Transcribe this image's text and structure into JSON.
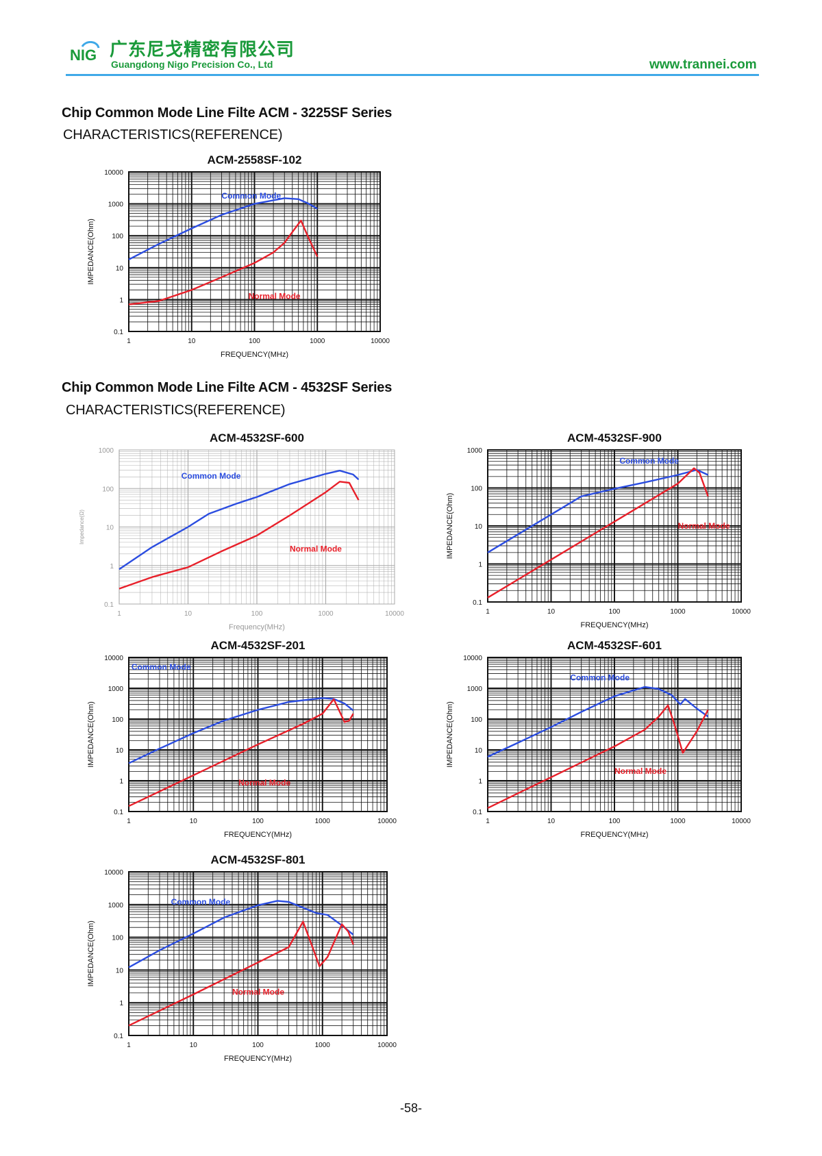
{
  "header": {
    "company_cn": "广东尼戈精密有限公司",
    "company_en": "Guangdong Nigo Precision Co., Ltd",
    "logo_text": "NIG",
    "website": "www.trannei.com",
    "brand_color": "#1a9a3a",
    "rule_color": "#3fa9e8"
  },
  "sections": [
    {
      "title": "Chip Common Mode Line Filte ACM - 3225SF Series",
      "subtitle": "CHARACTERISTICS(REFERENCE)"
    },
    {
      "title": "Chip Common Mode Line Filte ACM - 4532SF Series",
      "subtitle": "CHARACTERISTICS(REFERENCE)"
    }
  ],
  "page_number": "-58-",
  "chart_data": [
    {
      "type": "line",
      "title": "ACM-2558SF-102",
      "xlabel": "FREQUENCY(MHz)",
      "ylabel": "IMPEDANCE(Ohm)",
      "x_scale": "log",
      "y_scale": "log",
      "xlim": [
        1,
        10000
      ],
      "ylim": [
        0.1,
        10000
      ],
      "x_ticks": [
        "1",
        "10",
        "100",
        "1000",
        "10000"
      ],
      "y_ticks": [
        "0.1",
        "1",
        "10",
        "100",
        "1000",
        "10000"
      ],
      "grid": true,
      "series": [
        {
          "name": "Common Mode",
          "color": "#2b4de0",
          "label_at": [
            30,
            1450
          ],
          "points": [
            [
              1,
              18
            ],
            [
              3,
              55
            ],
            [
              10,
              170
            ],
            [
              30,
              450
            ],
            [
              100,
              1000
            ],
            [
              300,
              1500
            ],
            [
              500,
              1400
            ],
            [
              700,
              1050
            ],
            [
              1000,
              700
            ]
          ]
        },
        {
          "name": "Normal Mode",
          "color": "#e8202a",
          "label_at": [
            80,
            1.05
          ],
          "points": [
            [
              1,
              0.7
            ],
            [
              3,
              0.9
            ],
            [
              10,
              2
            ],
            [
              30,
              5
            ],
            [
              100,
              14
            ],
            [
              200,
              30
            ],
            [
              300,
              60
            ],
            [
              400,
              130
            ],
            [
              550,
              300
            ],
            [
              700,
              100
            ],
            [
              1000,
              22
            ]
          ]
        }
      ]
    },
    {
      "type": "line",
      "title": "ACM-4532SF-600",
      "xlabel": "Frequency(MHz)",
      "ylabel": "Impedance(Ω)",
      "x_scale": "log",
      "y_scale": "log",
      "xlim": [
        1,
        10000
      ],
      "ylim": [
        0.1,
        1000
      ],
      "x_ticks": [
        "1",
        "10",
        "100",
        "1000",
        "10000"
      ],
      "y_ticks": [
        "0.1",
        "1",
        "10",
        "100",
        "1000"
      ],
      "grid": true,
      "series": [
        {
          "name": "Common Mode",
          "color": "#2b4de0",
          "label_at": [
            8,
            180
          ],
          "points": [
            [
              1,
              0.8
            ],
            [
              3,
              3
            ],
            [
              10,
              10
            ],
            [
              20,
              22
            ],
            [
              50,
              40
            ],
            [
              100,
              60
            ],
            [
              300,
              130
            ],
            [
              1000,
              240
            ],
            [
              1600,
              290
            ],
            [
              2500,
              230
            ],
            [
              3000,
              170
            ]
          ]
        },
        {
          "name": "Normal Mode",
          "color": "#e8202a",
          "label_at": [
            300,
            2.3
          ],
          "points": [
            [
              1,
              0.25
            ],
            [
              3,
              0.5
            ],
            [
              10,
              0.9
            ],
            [
              30,
              2.3
            ],
            [
              100,
              6
            ],
            [
              300,
              20
            ],
            [
              1000,
              80
            ],
            [
              1600,
              150
            ],
            [
              2200,
              140
            ],
            [
              2600,
              80
            ],
            [
              3000,
              50
            ]
          ]
        }
      ]
    },
    {
      "type": "line",
      "title": "ACM-4532SF-900",
      "xlabel": "FREQUENCY(MHz)",
      "ylabel": "IMPEDANCE(Ohm)",
      "x_scale": "log",
      "y_scale": "log",
      "xlim": [
        1,
        10000
      ],
      "ylim": [
        0.1,
        1000
      ],
      "x_ticks": [
        "1",
        "10",
        "100",
        "1000",
        "10000"
      ],
      "y_ticks": [
        "0.1",
        "1",
        "10",
        "100",
        "1000"
      ],
      "grid": true,
      "series": [
        {
          "name": "Common Mode",
          "color": "#2b4de0",
          "label_at": [
            120,
            440
          ],
          "points": [
            [
              1,
              2
            ],
            [
              3,
              6
            ],
            [
              10,
              20
            ],
            [
              30,
              60
            ],
            [
              100,
              95
            ],
            [
              300,
              140
            ],
            [
              1000,
              220
            ],
            [
              2000,
              300
            ],
            [
              3000,
              220
            ]
          ]
        },
        {
          "name": "Normal Mode",
          "color": "#e8202a",
          "label_at": [
            1000,
            8.5
          ],
          "points": [
            [
              1,
              0.13
            ],
            [
              10,
              1.3
            ],
            [
              100,
              13
            ],
            [
              1000,
              130
            ],
            [
              1800,
              330
            ],
            [
              2200,
              250
            ],
            [
              3000,
              60
            ]
          ]
        }
      ]
    },
    {
      "type": "line",
      "title": "ACM-4532SF-201",
      "xlabel": "FREQUENCY(MHz)",
      "ylabel": "IMPEDANCE(Ohm)",
      "x_scale": "log",
      "y_scale": "log",
      "xlim": [
        1,
        10000
      ],
      "ylim": [
        0.1,
        10000
      ],
      "x_ticks": [
        "1",
        "10",
        "100",
        "1000",
        "10000"
      ],
      "y_ticks": [
        "0.1",
        "1",
        "10",
        "100",
        "1000",
        "10000"
      ],
      "grid": true,
      "series": [
        {
          "name": "Common Mode",
          "color": "#2b4de0",
          "label_at": [
            1.1,
            4000
          ],
          "points": [
            [
              1,
              3.7
            ],
            [
              3,
              11
            ],
            [
              10,
              35
            ],
            [
              30,
              90
            ],
            [
              100,
              200
            ],
            [
              300,
              360
            ],
            [
              1000,
              480
            ],
            [
              1500,
              450
            ],
            [
              2200,
              320
            ],
            [
              3000,
              190
            ]
          ]
        },
        {
          "name": "Normal Mode",
          "color": "#e8202a",
          "label_at": [
            50,
            0.7
          ],
          "points": [
            [
              1,
              0.15
            ],
            [
              10,
              1.5
            ],
            [
              100,
              15
            ],
            [
              500,
              70
            ],
            [
              1000,
              150
            ],
            [
              1500,
              440
            ],
            [
              2200,
              80
            ],
            [
              2600,
              90
            ],
            [
              3000,
              150
            ]
          ]
        }
      ]
    },
    {
      "type": "line",
      "title": "ACM-4532SF-601",
      "xlabel": "FREQUENCY(MHz)",
      "ylabel": "IMPEDANCE(Ohm)",
      "x_scale": "log",
      "y_scale": "log",
      "xlim": [
        1,
        10000
      ],
      "ylim": [
        0.1,
        10000
      ],
      "x_ticks": [
        "1",
        "10",
        "100",
        "1000",
        "10000"
      ],
      "y_ticks": [
        "0.1",
        "1",
        "10",
        "100",
        "1000",
        "10000"
      ],
      "grid": true,
      "series": [
        {
          "name": "Common Mode",
          "color": "#2b4de0",
          "label_at": [
            20,
            1800
          ],
          "points": [
            [
              1,
              6
            ],
            [
              3,
              17
            ],
            [
              10,
              55
            ],
            [
              30,
              170
            ],
            [
              100,
              550
            ],
            [
              300,
              1100
            ],
            [
              500,
              950
            ],
            [
              800,
              600
            ],
            [
              1100,
              300
            ],
            [
              1300,
              450
            ],
            [
              2000,
              220
            ],
            [
              3000,
              120
            ]
          ]
        },
        {
          "name": "Normal Mode",
          "color": "#e8202a",
          "label_at": [
            100,
            1.65
          ],
          "points": [
            [
              1,
              0.13
            ],
            [
              10,
              1.3
            ],
            [
              100,
              13
            ],
            [
              300,
              45
            ],
            [
              500,
              120
            ],
            [
              700,
              280
            ],
            [
              900,
              60
            ],
            [
              1200,
              8
            ],
            [
              2000,
              40
            ],
            [
              3000,
              200
            ]
          ]
        }
      ]
    },
    {
      "type": "line",
      "title": "ACM-4532SF-801",
      "xlabel": "FREQUENCY(MHz)",
      "ylabel": "IMPEDANCE(Ohm)",
      "x_scale": "log",
      "y_scale": "log",
      "xlim": [
        1,
        10000
      ],
      "ylim": [
        0.1,
        10000
      ],
      "x_ticks": [
        "1",
        "10",
        "100",
        "1000",
        "10000"
      ],
      "y_ticks": [
        "0.1",
        "1",
        "10",
        "100",
        "1000",
        "10000"
      ],
      "grid": true,
      "series": [
        {
          "name": "Common Mode",
          "color": "#2b4de0",
          "label_at": [
            4.5,
            1000
          ],
          "points": [
            [
              1,
              12
            ],
            [
              3,
              40
            ],
            [
              10,
              130
            ],
            [
              30,
              400
            ],
            [
              100,
              950
            ],
            [
              200,
              1300
            ],
            [
              300,
              1200
            ],
            [
              500,
              800
            ],
            [
              800,
              550
            ],
            [
              1200,
              480
            ],
            [
              2000,
              230
            ],
            [
              3000,
              120
            ]
          ]
        },
        {
          "name": "Normal Mode",
          "color": "#e8202a",
          "label_at": [
            40,
            1.75
          ],
          "points": [
            [
              1,
              0.2
            ],
            [
              10,
              1.8
            ],
            [
              100,
              17
            ],
            [
              300,
              50
            ],
            [
              500,
              300
            ],
            [
              700,
              50
            ],
            [
              900,
              13
            ],
            [
              1200,
              25
            ],
            [
              2000,
              250
            ],
            [
              2500,
              150
            ],
            [
              3000,
              60
            ]
          ]
        }
      ]
    }
  ]
}
